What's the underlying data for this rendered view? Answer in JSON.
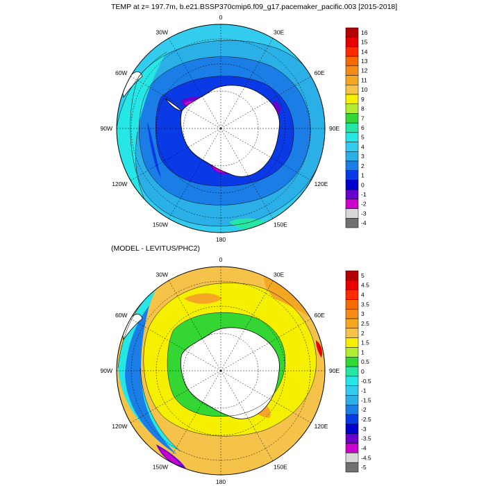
{
  "top": {
    "title": "TEMP at z= 197.7m, b.e21.BSSP370cmip6.f09_g17.pacemaker_pacific.003 [2015-2018]",
    "meridian_labels": [
      {
        "text": "0",
        "lon": 0
      },
      {
        "text": "30E",
        "lon": 30
      },
      {
        "text": "60E",
        "lon": 60
      },
      {
        "text": "90E",
        "lon": 90
      },
      {
        "text": "120E",
        "lon": 120
      },
      {
        "text": "150E",
        "lon": 150
      },
      {
        "text": "180",
        "lon": 180
      },
      {
        "text": "150W",
        "lon": -150
      },
      {
        "text": "120W",
        "lon": -120
      },
      {
        "text": "90W",
        "lon": -90
      },
      {
        "text": "60W",
        "lon": -60
      },
      {
        "text": "30W",
        "lon": -30
      }
    ],
    "colorbar": {
      "labels": [
        "16",
        "15",
        "14",
        "13",
        "12",
        "11",
        "10",
        "9",
        "8",
        "7",
        "6",
        "5",
        "4",
        "3",
        "2",
        "1",
        "0",
        "-1",
        "-2",
        "-3",
        "-4"
      ],
      "colors": [
        "#b30000",
        "#e60000",
        "#ff2a00",
        "#f56b00",
        "#f58c1a",
        "#f5a623",
        "#f5c24a",
        "#f5f000",
        "#b3ec33",
        "#33d633",
        "#26e6a6",
        "#26e6e6",
        "#33ccee",
        "#2ab0e6",
        "#1a7ee6",
        "#0a3ae6",
        "#0000cc",
        "#6a00cc",
        "#cc00cc",
        "#d8d8d8",
        "#707070"
      ]
    }
  },
  "bottom": {
    "title": "(MODEL - LEVITUS/PHC2)",
    "meridian_labels": [
      {
        "text": "0",
        "lon": 0
      },
      {
        "text": "30E",
        "lon": 30
      },
      {
        "text": "60E",
        "lon": 60
      },
      {
        "text": "90E",
        "lon": 90
      },
      {
        "text": "120E",
        "lon": 120
      },
      {
        "text": "150E",
        "lon": 150
      },
      {
        "text": "180",
        "lon": 180
      },
      {
        "text": "150W",
        "lon": -150
      },
      {
        "text": "120W",
        "lon": -120
      },
      {
        "text": "90W",
        "lon": -90
      },
      {
        "text": "60W",
        "lon": -60
      },
      {
        "text": "30W",
        "lon": -30
      }
    ],
    "colorbar": {
      "labels": [
        "5",
        "4.5",
        "4",
        "3.5",
        "3",
        "2.5",
        "2",
        "1.5",
        "1",
        "0.5",
        "0",
        "-0.5",
        "-1",
        "-1.5",
        "-2",
        "-2.5",
        "-3",
        "-3.5",
        "-4",
        "-4.5",
        "-5"
      ],
      "colors": [
        "#b30000",
        "#e60000",
        "#ff2a00",
        "#f56b00",
        "#f58c1a",
        "#f5a623",
        "#f5c24a",
        "#f5f000",
        "#b3ec33",
        "#33d633",
        "#26e6a6",
        "#26e6e6",
        "#33ccee",
        "#2ab0e6",
        "#1a7ee6",
        "#0a3ae6",
        "#0000cc",
        "#6a00cc",
        "#cc00cc",
        "#d8d8d8",
        "#707070"
      ]
    }
  }
}
